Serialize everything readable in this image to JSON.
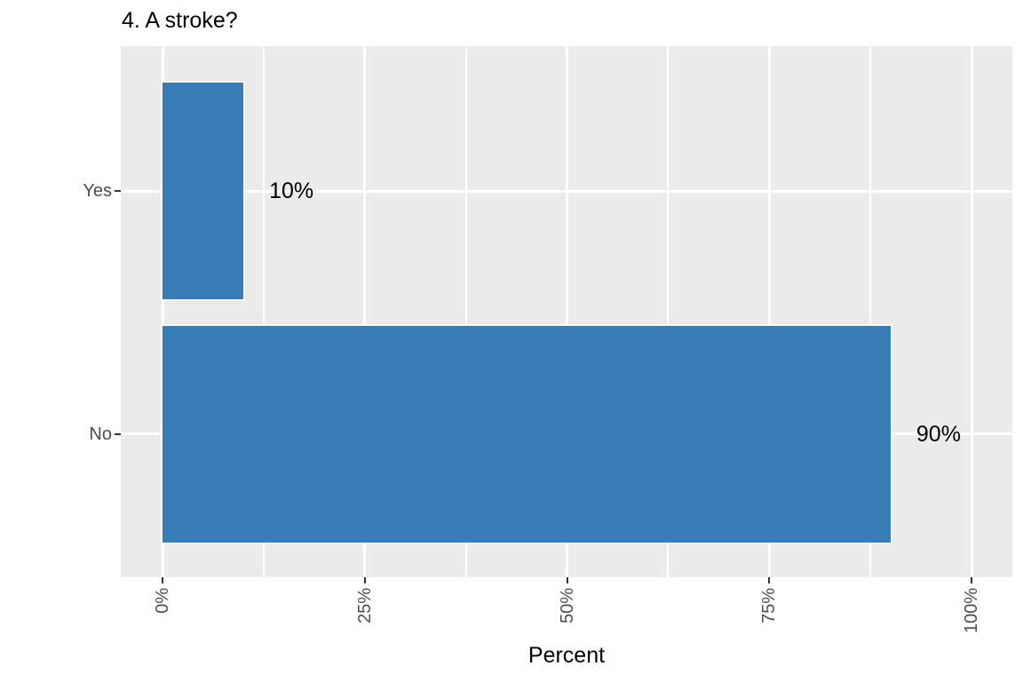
{
  "title": "4. A stroke?",
  "chart_data": {
    "type": "bar",
    "orientation": "horizontal",
    "title": "4. A stroke?",
    "xlabel": "Percent",
    "ylabel": "",
    "categories": [
      "Yes",
      "No"
    ],
    "values": [
      10,
      90
    ],
    "bar_labels": [
      "10%",
      "90%"
    ],
    "xlim": [
      0,
      100
    ],
    "x_ticks": [
      0,
      25,
      50,
      75,
      100
    ],
    "x_tick_labels": [
      "0%",
      "25%",
      "50%",
      "75%",
      "100%"
    ],
    "x_minor_ticks": [
      12.5,
      37.5,
      62.5,
      87.5
    ],
    "x_tick_label_rotation": -90,
    "grid": true,
    "legend_position": "none",
    "colors": {
      "bar_fill": "#377EB8",
      "bar_border": "#FFFFFF",
      "panel_background": "#EBEBEB",
      "page_background": "#FFFFFF",
      "gridline": "#FFFFFF",
      "axis_text": "#4D4D4D",
      "tick_mark": "#333333",
      "title_text": "#000000",
      "bar_label_text": "#000000"
    }
  }
}
